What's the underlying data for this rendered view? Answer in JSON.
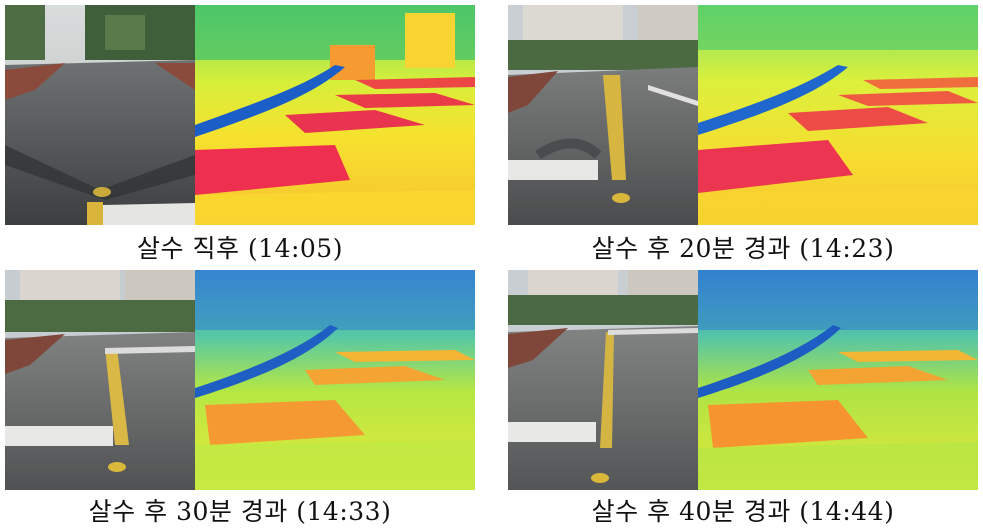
{
  "figure": {
    "panels": [
      {
        "id": "p1",
        "caption": "살수 직후 (14:05)",
        "timing": "immediately"
      },
      {
        "id": "p2",
        "caption": "살수 후 20분 경과 (14:23)",
        "timing": "20min"
      },
      {
        "id": "p3",
        "caption": "살수 후 30분 경과 (14:33)",
        "timing": "30min"
      },
      {
        "id": "p4",
        "caption": "살수 후 40분 경과 (14:44)",
        "timing": "40min"
      }
    ]
  }
}
